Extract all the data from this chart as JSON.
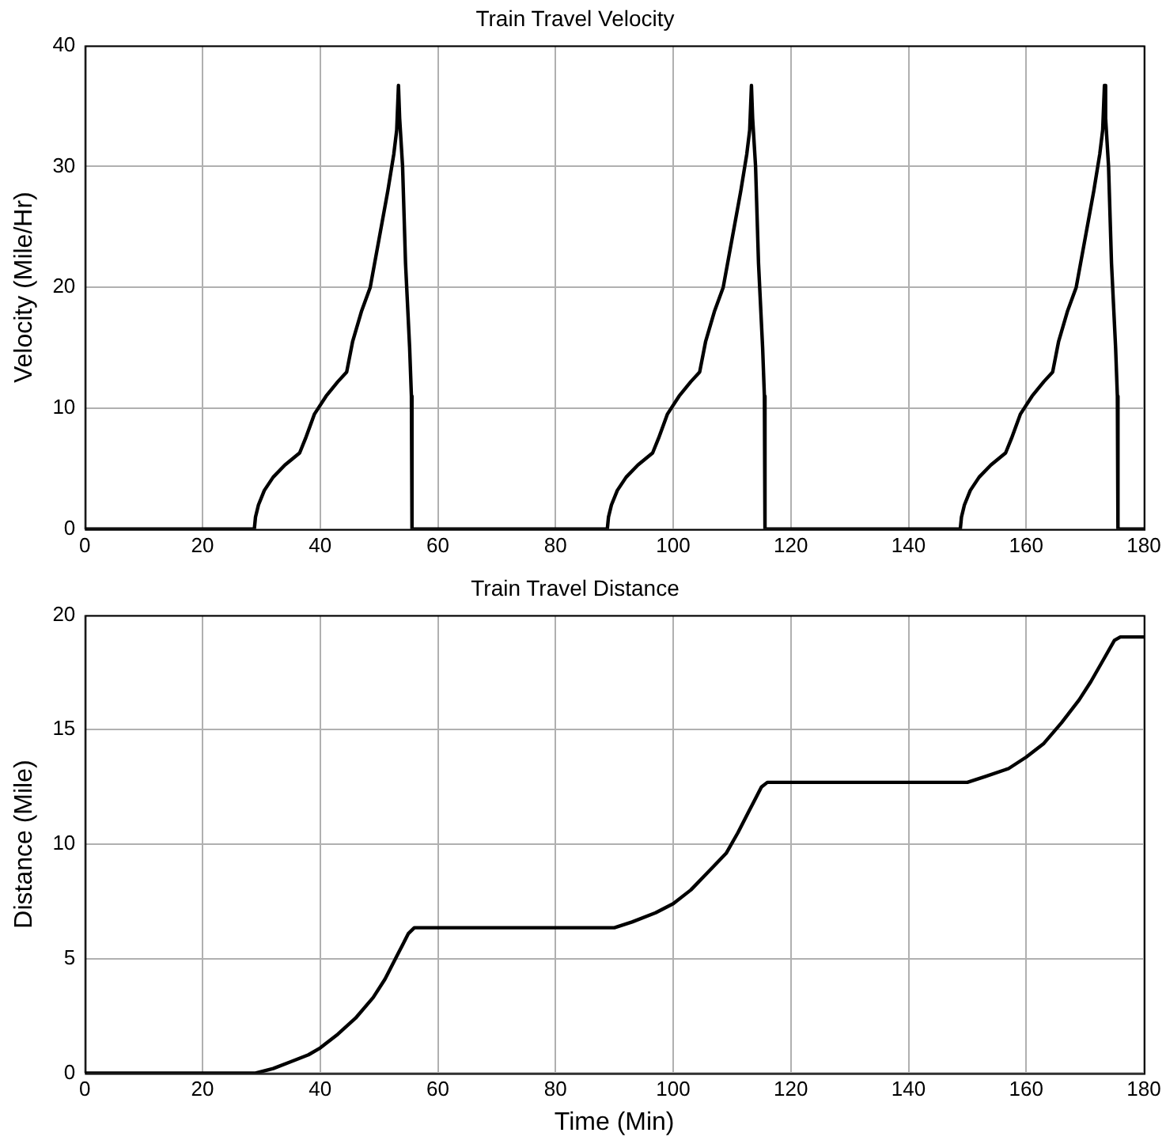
{
  "chart_data": [
    {
      "type": "line",
      "title": "Train Travel Velocity",
      "ylabel": "Velocity (Mile/Hr)",
      "xlim": [
        0,
        180
      ],
      "xticks": [
        0,
        20,
        40,
        60,
        80,
        100,
        120,
        140,
        160,
        180
      ],
      "ylim": [
        0,
        40
      ],
      "yticks": [
        0,
        10,
        20,
        30,
        40
      ],
      "grid": true,
      "legend": false,
      "marker": "none",
      "line_style": "solid",
      "series": [
        {
          "color": "#000000",
          "x": [
            0,
            28.8,
            29,
            29.5,
            30.5,
            32,
            34,
            36.5,
            37.5,
            39,
            41,
            43,
            44.5,
            45.5,
            47,
            48.5,
            50,
            51.5,
            52.5,
            53,
            53.3,
            53.5,
            54,
            54.5,
            55.2,
            55.5,
            55.6,
            88.8,
            89,
            89.5,
            90.5,
            92,
            94,
            96.5,
            97.5,
            99,
            101,
            103,
            104.5,
            105.5,
            107,
            108.5,
            110,
            111.5,
            112.5,
            113,
            113.3,
            113.5,
            114,
            114.5,
            115.2,
            115.5,
            115.6,
            148.8,
            149,
            149.5,
            150.5,
            152,
            154,
            156.5,
            157.5,
            159,
            161,
            163,
            164.5,
            165.5,
            167,
            168.5,
            170,
            171.5,
            172.5,
            173,
            173.3,
            173.5,
            174,
            174.5,
            175.2,
            175.5,
            175.6,
            180
          ],
          "values": [
            0,
            0,
            1,
            2,
            3.2,
            4.3,
            5.3,
            6.3,
            7.5,
            9.5,
            11,
            12.2,
            13,
            15.5,
            18,
            20,
            24,
            28,
            31,
            33,
            36.7,
            34,
            30,
            22,
            15,
            11,
            0,
            0,
            1,
            2,
            3.2,
            4.3,
            5.3,
            6.3,
            7.5,
            9.5,
            11,
            12.2,
            13,
            15.5,
            18,
            20,
            24,
            28,
            31,
            33,
            36.7,
            34,
            30,
            22,
            15,
            11,
            0,
            0,
            1,
            2,
            3.2,
            4.3,
            5.3,
            6.3,
            7.5,
            9.5,
            11,
            12.2,
            13,
            15.5,
            18,
            20,
            24,
            28,
            31,
            33,
            36.7,
            34,
            30,
            22,
            15,
            11,
            0,
            0
          ]
        }
      ]
    },
    {
      "type": "line",
      "title": "Train Travel Distance",
      "xlabel": "Time (Min)",
      "ylabel": "Distance (Mile)",
      "xlim": [
        0,
        180
      ],
      "xticks": [
        0,
        20,
        40,
        60,
        80,
        100,
        120,
        140,
        160,
        180
      ],
      "ylim": [
        0,
        20
      ],
      "yticks": [
        0,
        5,
        10,
        15,
        20
      ],
      "grid": true,
      "legend": false,
      "marker": "none",
      "line_style": "solid",
      "series": [
        {
          "color": "#000000",
          "x": [
            0,
            29,
            32,
            35,
            38,
            40,
            43,
            46,
            49,
            51,
            53,
            55,
            56,
            90,
            93,
            97,
            100,
            103,
            106,
            109,
            111,
            113,
            115,
            116,
            150,
            153,
            157,
            160,
            163,
            166,
            169,
            171,
            173,
            175,
            176,
            180
          ],
          "values": [
            0,
            0,
            0.2,
            0.5,
            0.8,
            1.1,
            1.7,
            2.4,
            3.3,
            4.1,
            5.1,
            6.1,
            6.35,
            6.35,
            6.6,
            7,
            7.4,
            8,
            8.8,
            9.6,
            10.5,
            11.5,
            12.5,
            12.7,
            12.7,
            12.95,
            13.3,
            13.8,
            14.4,
            15.3,
            16.3,
            17.1,
            18,
            18.9,
            19.05,
            19.05
          ]
        }
      ]
    }
  ]
}
